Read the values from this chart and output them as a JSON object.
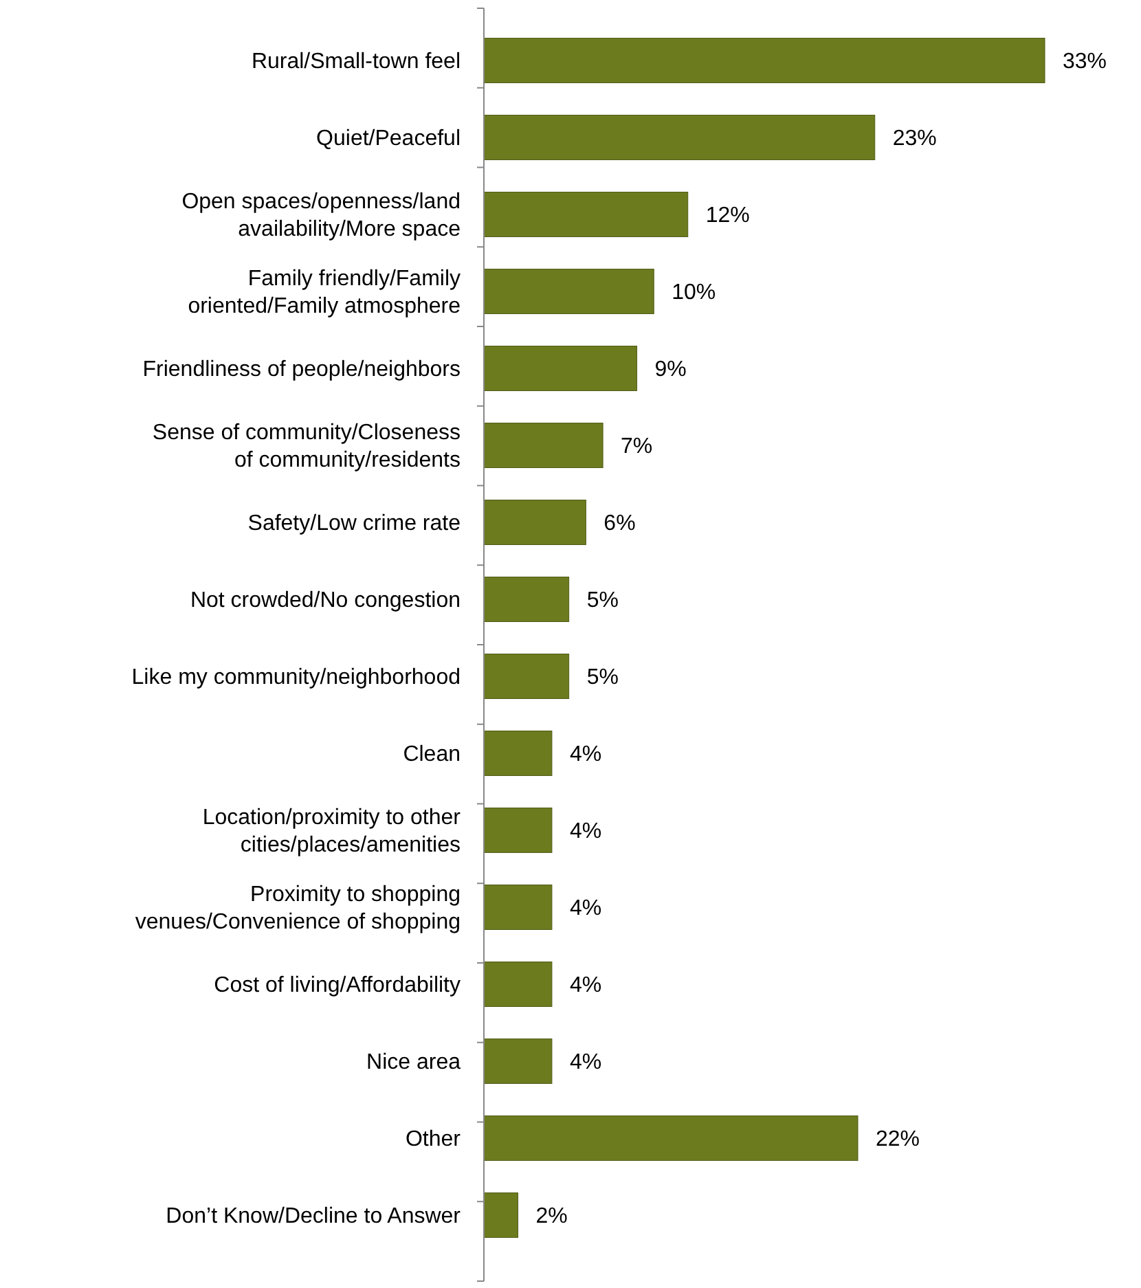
{
  "chart_data": {
    "type": "bar",
    "orientation": "horizontal",
    "categories": [
      "Rural/Small-town feel",
      "Quiet/Peaceful",
      "Open spaces/openness/land availability/More space",
      "Family friendly/Family oriented/Family atmosphere",
      "Friendliness of people/neighbors",
      "Sense of community/Closeness of community/residents",
      "Safety/Low crime rate",
      "Not crowded/No congestion",
      "Like my community/neighborhood",
      "Clean",
      "Location/proximity to other cities/places/amenities",
      "Proximity to shopping venues/Convenience of shopping",
      "Cost of living/Affordability",
      "Nice area",
      "Other",
      "Don’t Know/Decline to Answer"
    ],
    "values": [
      33,
      23,
      12,
      10,
      9,
      7,
      6,
      5,
      5,
      4,
      4,
      4,
      4,
      4,
      22,
      2
    ],
    "value_labels": [
      "33%",
      "23%",
      "12%",
      "10%",
      "9%",
      "7%",
      "6%",
      "5%",
      "5%",
      "4%",
      "4%",
      "4%",
      "4%",
      "4%",
      "22%",
      "2%"
    ],
    "color": "#6b7b1e"
  }
}
